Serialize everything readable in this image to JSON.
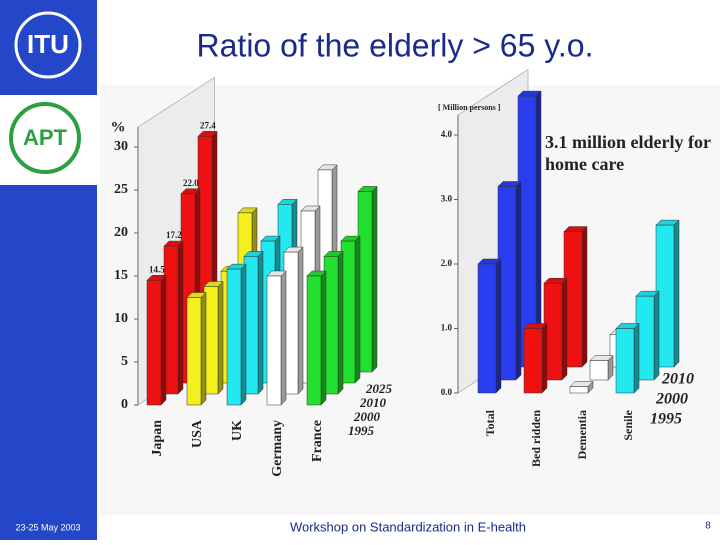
{
  "slide": {
    "title": "Ratio of the elderly  > 65 y.o.",
    "logo_top": "ITU",
    "logo_bottom": "APT",
    "date": "23-25 May 2003",
    "footer": "Workshop on Standardization in E-health",
    "page": "8"
  },
  "chart_data": [
    {
      "type": "bar3d",
      "y_label": "%",
      "categories": [
        "1995",
        "2000",
        "2010",
        "2025"
      ],
      "series": [
        {
          "name": "Japan",
          "color": "#ee1111",
          "values": [
            14.5,
            17.2,
            22.0,
            27.4
          ],
          "value_labels": [
            "14.5",
            "17.2",
            "22.0",
            "27.4"
          ]
        },
        {
          "name": "USA",
          "color": "#f4f020",
          "values": [
            12.5,
            12.5,
            13,
            18.5
          ]
        },
        {
          "name": "UK",
          "color": "#22e8f0",
          "values": [
            15.8,
            16,
            16.5,
            19.5
          ]
        },
        {
          "name": "Germany",
          "color": "#ffffff",
          "values": [
            15,
            16.5,
            20,
            23.5
          ]
        },
        {
          "name": "France",
          "color": "#22e030",
          "values": [
            15,
            16,
            16.5,
            21
          ]
        }
      ],
      "ylim": [
        0,
        30
      ],
      "yticks": [
        0,
        5,
        10,
        15,
        20,
        25,
        30
      ]
    },
    {
      "type": "bar3d",
      "y_label": "[ Million persons ]",
      "annotation": "3.1 million elderly for home care",
      "categories": [
        "1995",
        "2000",
        "2010"
      ],
      "series": [
        {
          "name": "Total",
          "color": "#2a3ef0",
          "values": [
            2.0,
            3.0,
            4.2
          ]
        },
        {
          "name": "Bed ridden",
          "color": "#ee1111",
          "values": [
            1.0,
            1.5,
            2.1
          ]
        },
        {
          "name": "Dementia",
          "color": "#ffffff",
          "values": [
            0.1,
            0.3,
            0.5
          ]
        },
        {
          "name": "Senile",
          "color": "#22e8f0",
          "values": [
            1.0,
            1.3,
            2.2
          ]
        }
      ],
      "ylim": [
        0,
        4
      ],
      "yticks": [
        {
          "value": 0,
          "label": "0.0"
        },
        {
          "value": 1,
          "label": "1.0"
        },
        {
          "value": 2,
          "label": "2.0"
        },
        {
          "value": 3,
          "label": "3.0"
        },
        {
          "value": 4,
          "label": "4.0"
        }
      ]
    }
  ]
}
